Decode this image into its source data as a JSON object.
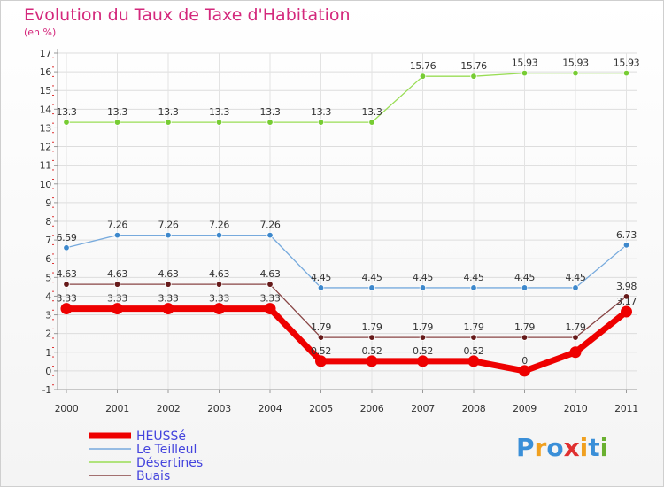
{
  "chart_data": {
    "type": "line",
    "title": "Evolution du Taux de Taxe d'Habitation",
    "subtitle": "(en %)",
    "categories": [
      "2000",
      "2001",
      "2002",
      "2003",
      "2004",
      "2005",
      "2006",
      "2007",
      "2008",
      "2009",
      "2010",
      "2011"
    ],
    "yticks": [
      "-1",
      "0",
      "1",
      "2",
      "3",
      "4",
      "5",
      "6",
      "7",
      "8",
      "9",
      "10",
      "11",
      "12",
      "13",
      "14",
      "15",
      "16",
      "17"
    ],
    "ylim": [
      -1,
      17
    ],
    "grid": true,
    "series": [
      {
        "name": "Désertines",
        "color": "#99dd55",
        "point_color": "#77cc33",
        "values": [
          13.3,
          13.3,
          13.3,
          13.3,
          13.3,
          13.3,
          13.3,
          15.76,
          15.76,
          15.93,
          15.93,
          15.93
        ],
        "labels": [
          "13.3",
          "13.3",
          "13.3",
          "13.3",
          "13.3",
          "13.3",
          "13.3",
          "15.76",
          "15.76",
          "15.93",
          "15.93",
          "15.93"
        ]
      },
      {
        "name": "Le Teilleul",
        "color": "#77aadd",
        "point_color": "#3d88cc",
        "values": [
          6.59,
          7.26,
          7.26,
          7.26,
          7.26,
          4.45,
          4.45,
          4.45,
          4.45,
          4.45,
          4.45,
          6.73
        ],
        "labels": [
          "6.59",
          "7.26",
          "7.26",
          "7.26",
          "7.26",
          "4.45",
          "4.45",
          "4.45",
          "4.45",
          "4.45",
          "4.45",
          "6.73"
        ]
      },
      {
        "name": "Buais",
        "color": "#884444",
        "point_color": "#661a1a",
        "values": [
          4.63,
          4.63,
          4.63,
          4.63,
          4.63,
          1.79,
          1.79,
          1.79,
          1.79,
          1.79,
          1.79,
          3.98
        ],
        "labels": [
          "4.63",
          "4.63",
          "4.63",
          "4.63",
          "4.63",
          "1.79",
          "1.79",
          "1.79",
          "1.79",
          "1.79",
          "1.79",
          "3.98"
        ]
      },
      {
        "name": "HEUSSé",
        "color": "#ee0000",
        "point_color": "#ee0000",
        "values": [
          3.33,
          3.33,
          3.33,
          3.33,
          3.33,
          0.52,
          0.52,
          0.52,
          0.52,
          0,
          1,
          3.17
        ],
        "labels": [
          "3.33",
          "3.33",
          "3.33",
          "3.33",
          "3.33",
          "0.52",
          "0.52",
          "0.52",
          "0.52",
          "0",
          "",
          "3.17"
        ]
      }
    ],
    "legend": {
      "placement": "bottom-left",
      "order": [
        "HEUSSé",
        "Le Teilleul",
        "Désertines",
        "Buais"
      ]
    }
  },
  "brand": {
    "text": "Proxiti",
    "letter_colors": [
      "#3a8fd8",
      "#f0a020",
      "#3a8fd8",
      "#e03030",
      "#f0a020",
      "#3a8fd8",
      "#6ab030"
    ]
  }
}
